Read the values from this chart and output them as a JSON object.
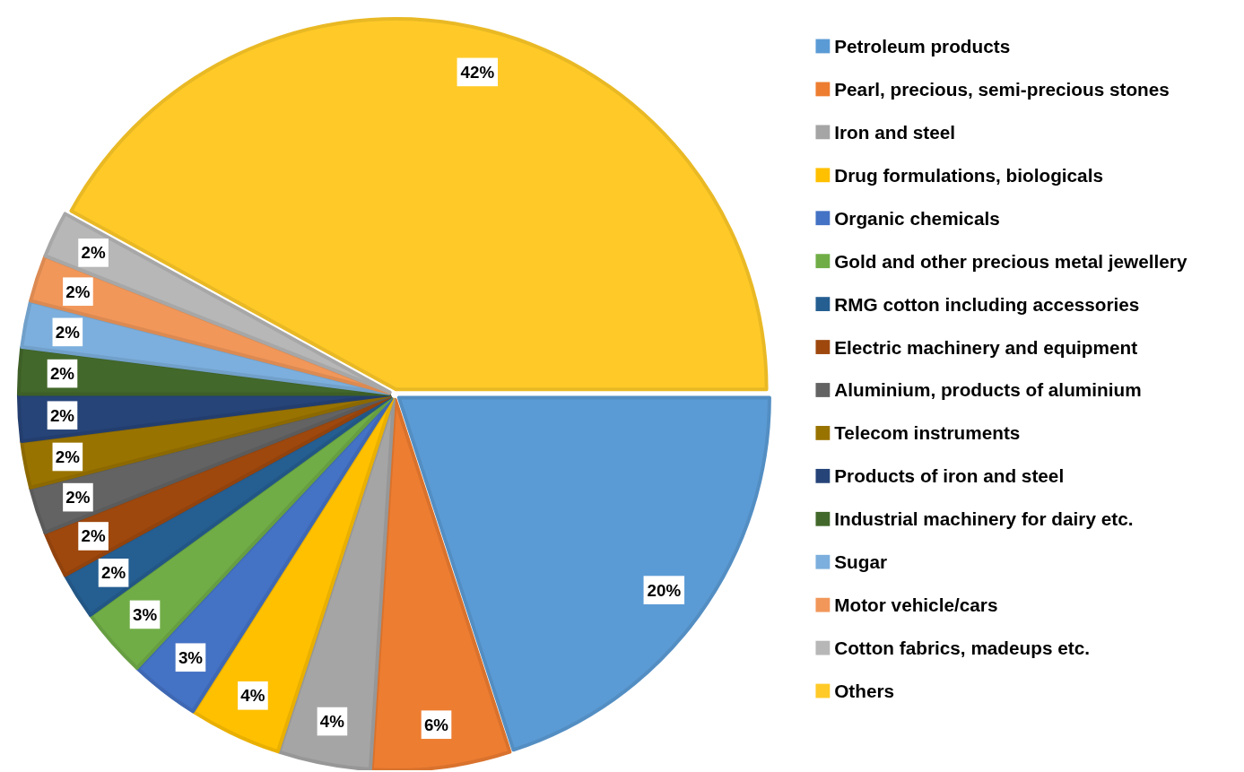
{
  "chart_data": {
    "type": "pie",
    "categories": [
      "Petroleum products",
      "Pearl, precious, semi-precious stones",
      "Iron and steel",
      "Drug formulations, biologicals",
      "Organic chemicals",
      "Gold and other precious metal  jewellery",
      "RMG cotton including accessories",
      "Electric machinery and equipment",
      "Aluminium, products of aluminium",
      "Telecom instruments",
      "Products of iron and steel",
      "Industrial machinery for dairy etc.",
      "Sugar",
      "Motor vehicle/cars",
      "Cotton fabrics, madeups etc.",
      "Others"
    ],
    "values": [
      20,
      6,
      4,
      4,
      3,
      3,
      2,
      2,
      2,
      2,
      2,
      2,
      2,
      2,
      2,
      42
    ],
    "value_labels": [
      "20%",
      "6%",
      "4%",
      "4%",
      "3%",
      "3%",
      "2%",
      "2%",
      "2%",
      "2%",
      "2%",
      "2%",
      "2%",
      "2%",
      "2%",
      "42%"
    ],
    "colors": [
      "#5b9bd5",
      "#ed7d31",
      "#a5a5a5",
      "#ffc000",
      "#4472c4",
      "#70ad47",
      "#255e91",
      "#9e480e",
      "#636363",
      "#997300",
      "#264478",
      "#43682b",
      "#7cafdd",
      "#f1975a",
      "#b7b7b7",
      "#ffca28"
    ],
    "legend": "right"
  }
}
